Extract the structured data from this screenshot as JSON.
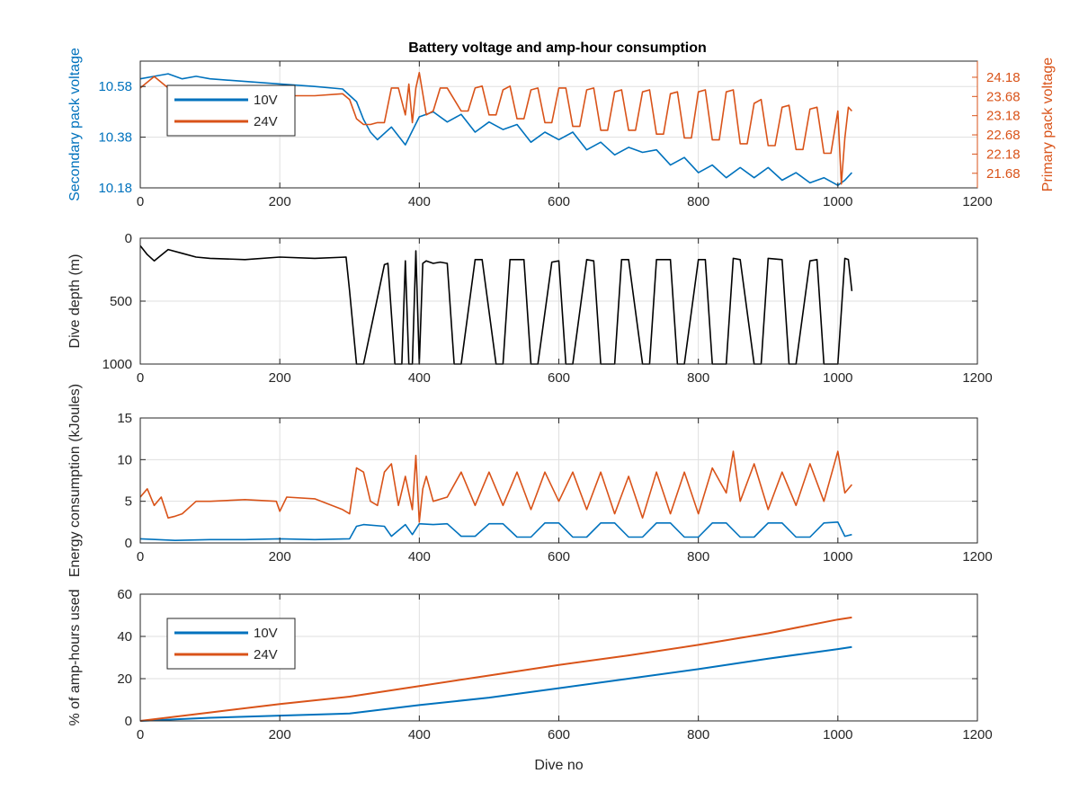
{
  "figure_title": "Battery voltage and amp-hour consumption",
  "colors": {
    "v10": "#0072bd",
    "v24": "#d95319",
    "depth": "#000000",
    "grid": "#dfdfdf",
    "axes": "#262626"
  },
  "chart_data": [
    {
      "type": "line",
      "title": "Battery voltage and amp-hour consumption",
      "xlabel": "",
      "ylabel": "Secondary pack voltage",
      "ylabel_right": "Primary pack voltage",
      "xlim": [
        0,
        1200
      ],
      "ylim": [
        10.18,
        10.68
      ],
      "ylim_right": [
        21.3,
        24.6
      ],
      "xticks": [
        "0",
        "200",
        "400",
        "600",
        "800",
        "1000",
        "1200"
      ],
      "yticks": [
        "10.18",
        "10.38",
        "10.58"
      ],
      "yticks_right": [
        "21.68",
        "22.18",
        "22.68",
        "23.18",
        "23.68",
        "24.18"
      ],
      "grid": true,
      "legend": {
        "position": "top-left",
        "entries": [
          "10V",
          "24V"
        ]
      },
      "series": [
        {
          "name": "10V",
          "axis": "left",
          "x": [
            0,
            20,
            40,
            60,
            80,
            100,
            150,
            200,
            250,
            290,
            310,
            320,
            330,
            340,
            360,
            380,
            400,
            420,
            440,
            460,
            480,
            500,
            520,
            540,
            560,
            580,
            600,
            620,
            640,
            660,
            680,
            700,
            720,
            740,
            760,
            780,
            800,
            820,
            840,
            860,
            880,
            900,
            920,
            940,
            960,
            980,
            1000,
            1010,
            1020
          ],
          "y": [
            10.61,
            10.62,
            10.63,
            10.61,
            10.62,
            10.61,
            10.6,
            10.59,
            10.58,
            10.57,
            10.52,
            10.45,
            10.4,
            10.37,
            10.42,
            10.35,
            10.46,
            10.48,
            10.44,
            10.47,
            10.4,
            10.44,
            10.41,
            10.43,
            10.36,
            10.4,
            10.37,
            10.4,
            10.33,
            10.36,
            10.31,
            10.34,
            10.32,
            10.33,
            10.27,
            10.3,
            10.24,
            10.27,
            10.22,
            10.26,
            10.22,
            10.26,
            10.21,
            10.24,
            10.2,
            10.22,
            10.19,
            10.21,
            10.24
          ]
        },
        {
          "name": "24V",
          "axis": "right",
          "x": [
            0,
            20,
            40,
            60,
            80,
            100,
            150,
            200,
            250,
            290,
            300,
            310,
            320,
            330,
            340,
            350,
            360,
            370,
            380,
            385,
            390,
            395,
            400,
            410,
            420,
            430,
            440,
            460,
            470,
            480,
            490,
            500,
            510,
            520,
            530,
            540,
            550,
            560,
            570,
            580,
            590,
            600,
            610,
            620,
            630,
            640,
            650,
            660,
            670,
            680,
            690,
            700,
            710,
            720,
            730,
            740,
            750,
            760,
            770,
            780,
            790,
            800,
            810,
            820,
            830,
            840,
            850,
            860,
            870,
            880,
            890,
            900,
            910,
            920,
            930,
            940,
            950,
            960,
            970,
            980,
            990,
            1000,
            1005,
            1010,
            1015,
            1020
          ],
          "y": [
            23.9,
            24.2,
            23.9,
            23.8,
            23.8,
            23.75,
            23.75,
            23.7,
            23.7,
            23.75,
            23.6,
            23.1,
            22.95,
            22.95,
            23.0,
            23.0,
            23.9,
            23.9,
            23.2,
            24.0,
            23.0,
            23.9,
            24.3,
            23.2,
            23.3,
            23.9,
            23.9,
            23.3,
            23.3,
            23.9,
            23.95,
            23.2,
            23.2,
            23.85,
            23.95,
            23.1,
            23.1,
            23.85,
            23.9,
            23.0,
            23.0,
            23.9,
            23.9,
            22.9,
            22.9,
            23.85,
            23.9,
            22.8,
            22.8,
            23.8,
            23.85,
            22.8,
            22.8,
            23.8,
            23.85,
            22.7,
            22.7,
            23.75,
            23.8,
            22.6,
            22.6,
            23.8,
            23.85,
            22.55,
            22.55,
            23.8,
            23.85,
            22.45,
            22.45,
            23.5,
            23.6,
            22.4,
            22.4,
            23.4,
            23.45,
            22.3,
            22.3,
            23.35,
            23.4,
            22.2,
            22.2,
            23.3,
            21.4,
            22.6,
            23.4,
            23.3
          ]
        }
      ]
    },
    {
      "type": "line",
      "title": "",
      "xlabel": "",
      "ylabel": "Dive depth (m)",
      "xlim": [
        0,
        1200
      ],
      "ylim": [
        0,
        1000
      ],
      "y_reversed": true,
      "xticks": [
        "0",
        "200",
        "400",
        "600",
        "800",
        "1000",
        "1200"
      ],
      "yticks": [
        "0",
        "500",
        "1000"
      ],
      "grid": true,
      "series": [
        {
          "name": "",
          "x": [
            0,
            10,
            20,
            40,
            60,
            80,
            100,
            150,
            200,
            250,
            295,
            300,
            310,
            320,
            350,
            355,
            365,
            375,
            380,
            385,
            390,
            395,
            400,
            405,
            410,
            420,
            430,
            440,
            450,
            460,
            480,
            490,
            510,
            520,
            530,
            550,
            560,
            570,
            590,
            600,
            610,
            620,
            640,
            650,
            660,
            680,
            690,
            700,
            720,
            730,
            740,
            760,
            770,
            780,
            800,
            810,
            820,
            840,
            850,
            860,
            880,
            890,
            900,
            920,
            930,
            940,
            960,
            970,
            980,
            1000,
            1010,
            1015,
            1020
          ],
          "y": [
            60,
            130,
            180,
            90,
            120,
            150,
            160,
            170,
            150,
            160,
            150,
            420,
            1000,
            1000,
            210,
            200,
            1000,
            1000,
            180,
            1000,
            1000,
            100,
            1000,
            200,
            180,
            200,
            190,
            200,
            1000,
            1000,
            170,
            170,
            1000,
            1000,
            170,
            170,
            1000,
            1000,
            190,
            180,
            1000,
            1000,
            170,
            180,
            1000,
            1000,
            170,
            170,
            1000,
            1000,
            170,
            170,
            1000,
            1000,
            170,
            170,
            1000,
            1000,
            160,
            170,
            1000,
            1000,
            160,
            170,
            1000,
            1000,
            180,
            170,
            1000,
            1000,
            160,
            170,
            420
          ]
        }
      ]
    },
    {
      "type": "line",
      "title": "",
      "xlabel": "",
      "ylabel": "Energy consumption (kJoules)",
      "xlim": [
        0,
        1200
      ],
      "ylim": [
        0,
        15
      ],
      "xticks": [
        "0",
        "200",
        "400",
        "600",
        "800",
        "1000",
        "1200"
      ],
      "yticks": [
        "0",
        "5",
        "10",
        "15"
      ],
      "grid": true,
      "series": [
        {
          "name": "10V",
          "x": [
            0,
            50,
            100,
            150,
            200,
            250,
            300,
            310,
            320,
            350,
            360,
            380,
            390,
            400,
            420,
            440,
            460,
            480,
            500,
            520,
            540,
            560,
            580,
            600,
            620,
            640,
            660,
            680,
            700,
            720,
            740,
            760,
            780,
            800,
            820,
            840,
            860,
            880,
            900,
            920,
            940,
            960,
            980,
            1000,
            1010,
            1020
          ],
          "y": [
            0.5,
            0.3,
            0.4,
            0.4,
            0.5,
            0.4,
            0.5,
            2.0,
            2.2,
            2.0,
            0.8,
            2.2,
            1.0,
            2.3,
            2.2,
            2.3,
            0.8,
            0.8,
            2.3,
            2.3,
            0.7,
            0.7,
            2.4,
            2.4,
            0.7,
            0.7,
            2.4,
            2.4,
            0.7,
            0.7,
            2.4,
            2.4,
            0.7,
            0.7,
            2.4,
            2.4,
            0.7,
            0.7,
            2.4,
            2.4,
            0.7,
            0.7,
            2.4,
            2.5,
            0.8,
            1.0
          ]
        },
        {
          "name": "24V",
          "x": [
            0,
            10,
            20,
            30,
            40,
            50,
            60,
            80,
            100,
            150,
            195,
            200,
            210,
            250,
            290,
            300,
            310,
            320,
            330,
            340,
            350,
            360,
            370,
            380,
            390,
            395,
            400,
            405,
            410,
            420,
            440,
            460,
            480,
            500,
            520,
            540,
            560,
            580,
            600,
            620,
            640,
            660,
            680,
            700,
            720,
            740,
            760,
            780,
            800,
            820,
            840,
            850,
            860,
            880,
            900,
            920,
            940,
            960,
            980,
            1000,
            1010,
            1020
          ],
          "y": [
            5.5,
            6.5,
            4.5,
            5.5,
            3.0,
            3.2,
            3.5,
            5.0,
            5.0,
            5.2,
            5.0,
            3.8,
            5.5,
            5.3,
            4.0,
            3.5,
            9.0,
            8.5,
            5.0,
            4.5,
            8.5,
            9.5,
            4.5,
            8.0,
            4.0,
            10.5,
            2.5,
            6.5,
            8.0,
            5.0,
            5.5,
            8.5,
            4.5,
            8.5,
            4.5,
            8.5,
            4.0,
            8.5,
            5.0,
            8.5,
            4.0,
            8.5,
            3.5,
            8.0,
            3.0,
            8.5,
            3.5,
            8.5,
            3.5,
            9.0,
            6.0,
            11.0,
            5.0,
            9.5,
            4.0,
            8.5,
            4.5,
            9.5,
            5.0,
            11.0,
            6.0,
            7.0
          ]
        }
      ]
    },
    {
      "type": "line",
      "title": "",
      "xlabel": "Dive no",
      "ylabel": "% of amp-hours used",
      "xlim": [
        0,
        1200
      ],
      "ylim": [
        0,
        60
      ],
      "xticks": [
        "0",
        "200",
        "400",
        "600",
        "800",
        "1000",
        "1200"
      ],
      "yticks": [
        "0",
        "20",
        "40",
        "60"
      ],
      "grid": true,
      "legend": {
        "position": "top-left",
        "entries": [
          "10V",
          "24V"
        ]
      },
      "series": [
        {
          "name": "10V",
          "x": [
            0,
            100,
            200,
            300,
            400,
            500,
            600,
            700,
            800,
            900,
            1000,
            1020
          ],
          "y": [
            0,
            1.5,
            2.5,
            3.5,
            7.5,
            11.0,
            15.5,
            20.0,
            24.5,
            29.5,
            34.0,
            35.0
          ]
        },
        {
          "name": "24V",
          "x": [
            0,
            100,
            200,
            300,
            400,
            500,
            600,
            700,
            800,
            900,
            1000,
            1020
          ],
          "y": [
            0,
            4.0,
            8.0,
            11.5,
            16.5,
            21.5,
            26.5,
            31.0,
            36.0,
            41.5,
            48.0,
            49.0
          ]
        }
      ]
    }
  ]
}
